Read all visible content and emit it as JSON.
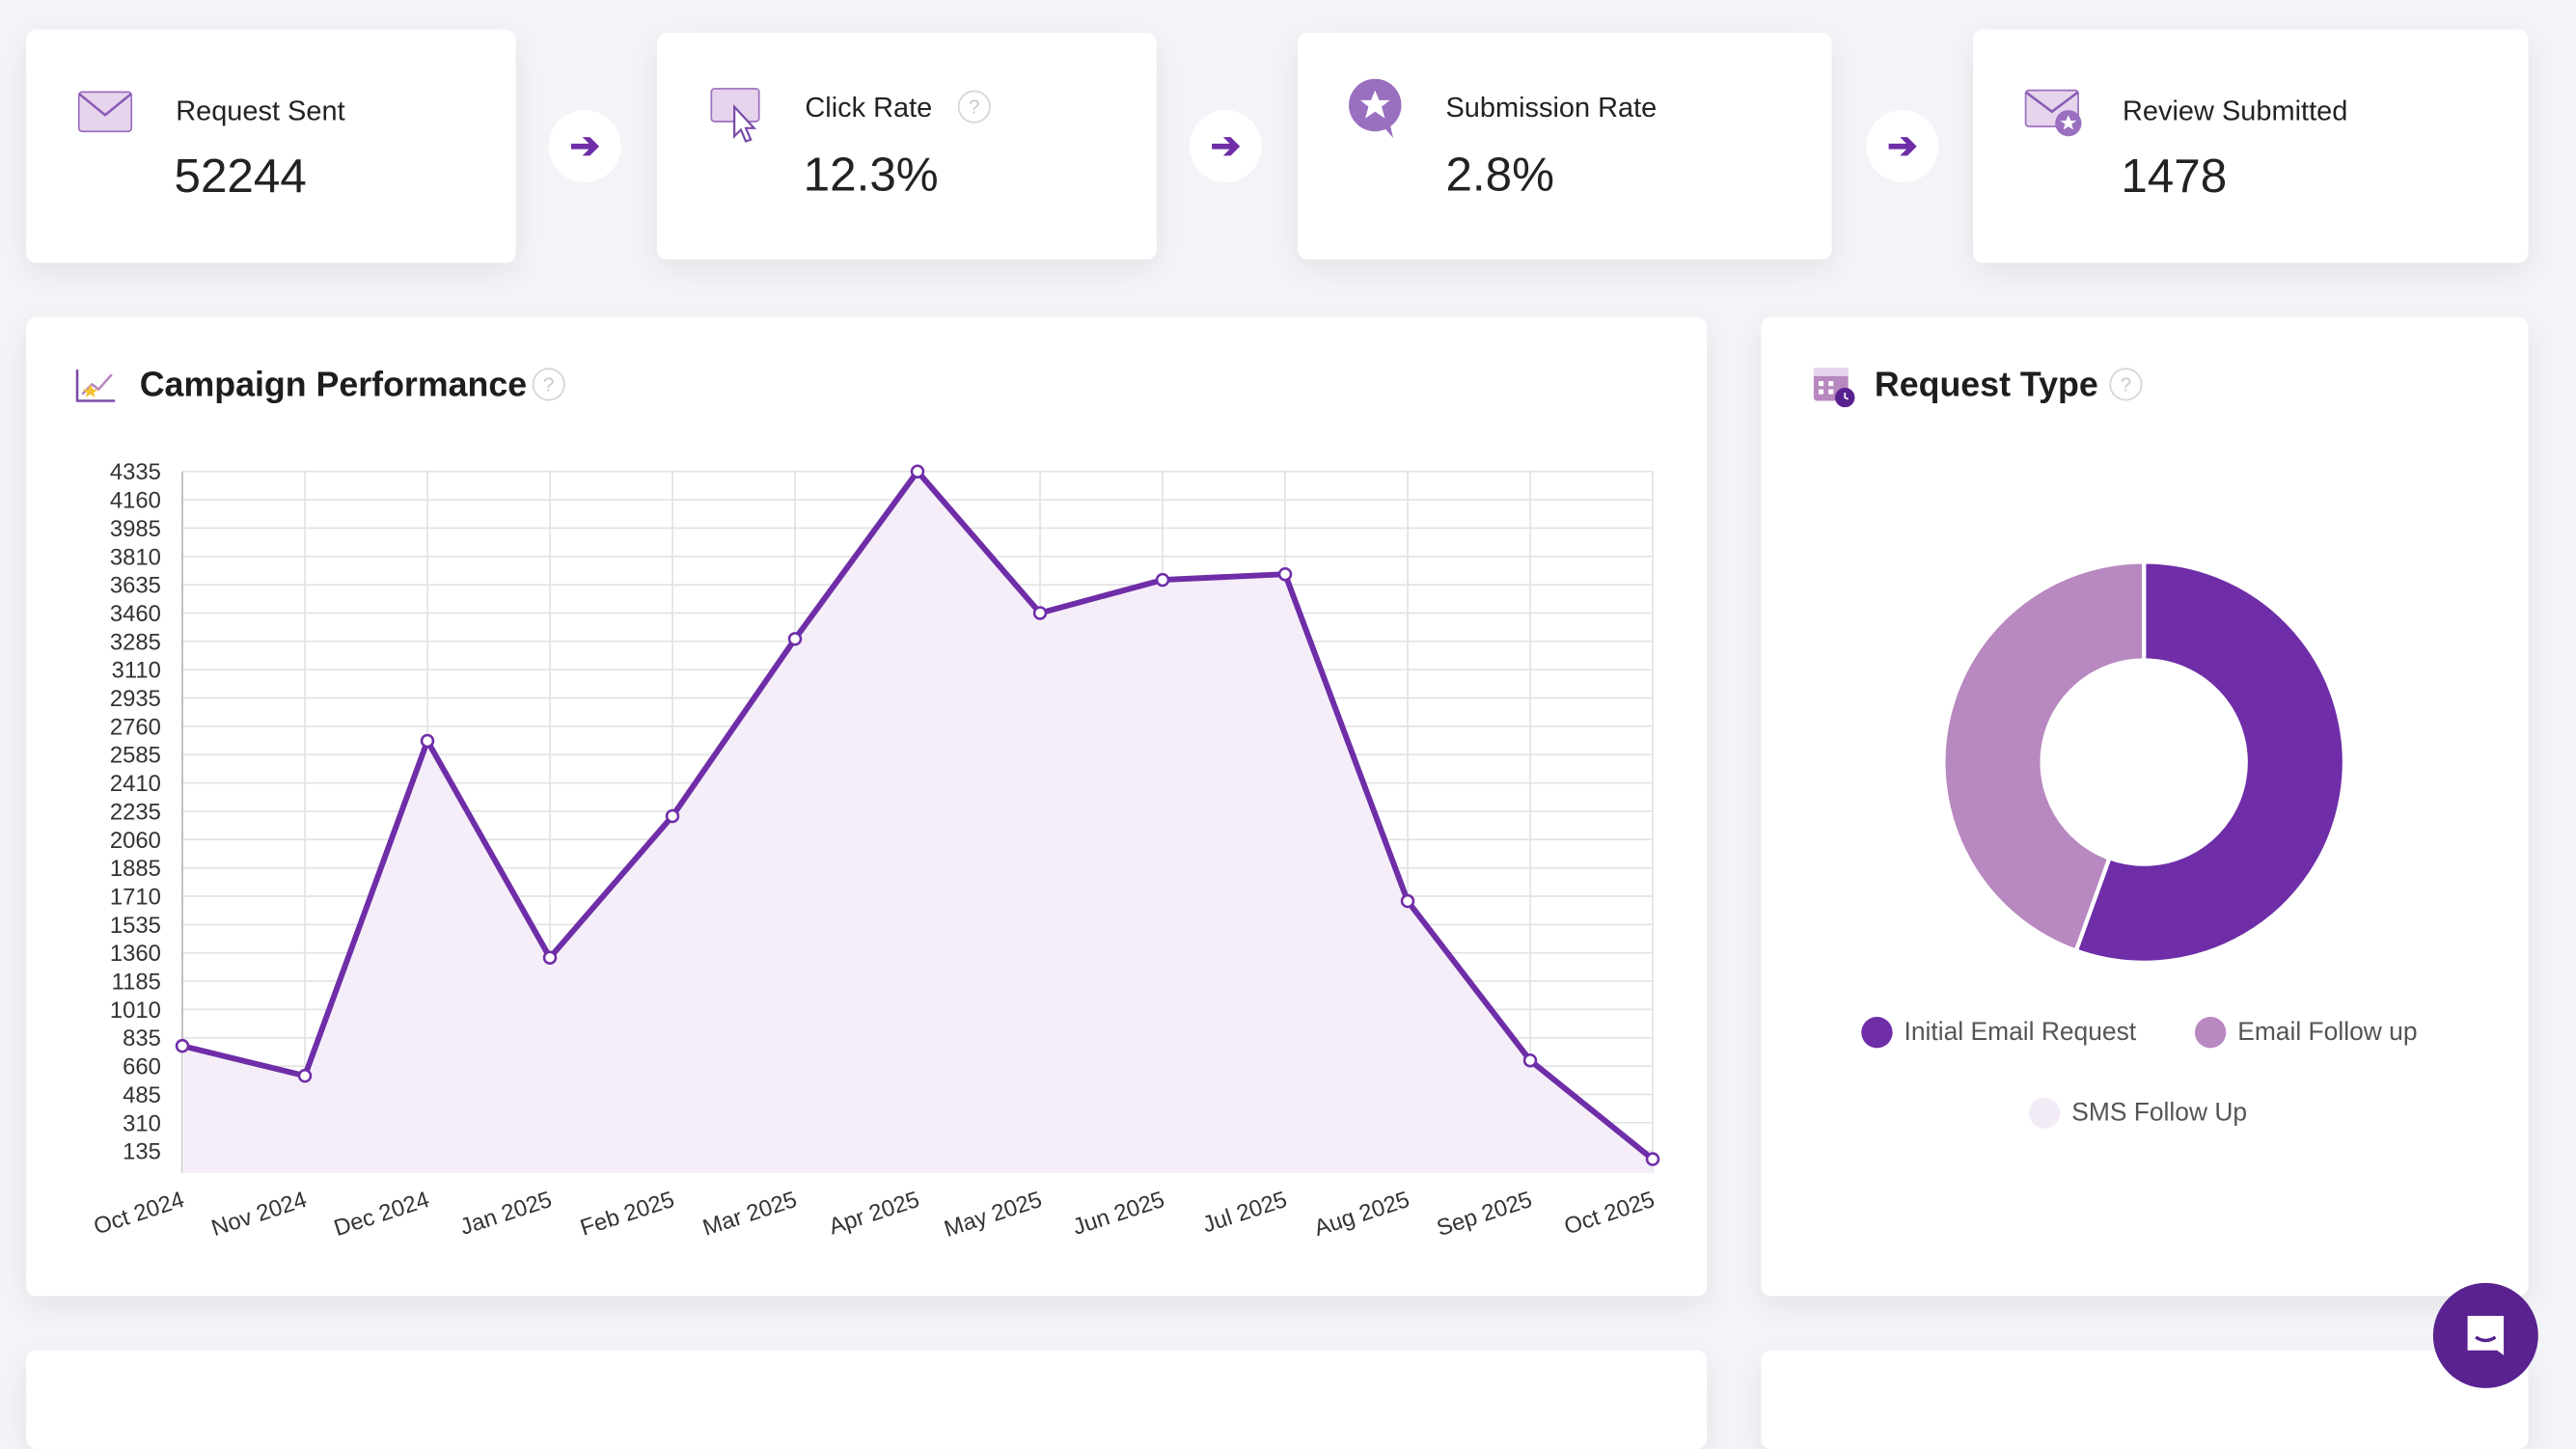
{
  "kpis": [
    {
      "label": "Request Sent",
      "value": "52244",
      "icon": "envelope-icon"
    },
    {
      "label": "Click Rate",
      "value": "12.3%",
      "icon": "click-cursor-icon"
    },
    {
      "label": "Submission Rate",
      "value": "2.8%",
      "icon": "star-chat-icon"
    },
    {
      "label": "Review Submitted",
      "value": "1478",
      "icon": "envelope-star-icon"
    }
  ],
  "help_glyph": "?",
  "arrow_glyph": "➔",
  "colors": {
    "accent": "#6f2da8",
    "light": "#b888c0",
    "fill": "#f5eef8",
    "sms": "#f3ecf7"
  },
  "campaign": {
    "title": "Campaign Performance"
  },
  "request_type": {
    "title": "Request Type"
  },
  "chart_data": [
    {
      "type": "line",
      "title": "Campaign Performance",
      "categories": [
        "Oct 2024",
        "Nov 2024",
        "Dec 2024",
        "Jan 2025",
        "Feb 2025",
        "Mar 2025",
        "Apr 2025",
        "May 2025",
        "Jun 2025",
        "Jul 2025",
        "Aug 2025",
        "Sep 2025",
        "Oct 2025"
      ],
      "values": [
        785,
        600,
        2670,
        1330,
        2205,
        3300,
        4335,
        3460,
        3665,
        3700,
        1680,
        695,
        85
      ],
      "yticks": [
        4335,
        4160,
        3985,
        3810,
        3635,
        3460,
        3285,
        3110,
        2935,
        2760,
        2585,
        2410,
        2235,
        2060,
        1885,
        1710,
        1535,
        1360,
        1185,
        1010,
        835,
        660,
        485,
        310,
        135
      ],
      "ylim": [
        0,
        4335
      ],
      "grid": true
    },
    {
      "type": "pie",
      "title": "Request Type",
      "labels": [
        "Initial Email Request",
        "Email Follow up",
        "SMS Follow Up"
      ],
      "values": [
        55.5,
        44.5,
        0
      ],
      "colors": [
        "#6f2da8",
        "#b888c0",
        "#f3ecf7"
      ],
      "legend": "bottom"
    }
  ]
}
